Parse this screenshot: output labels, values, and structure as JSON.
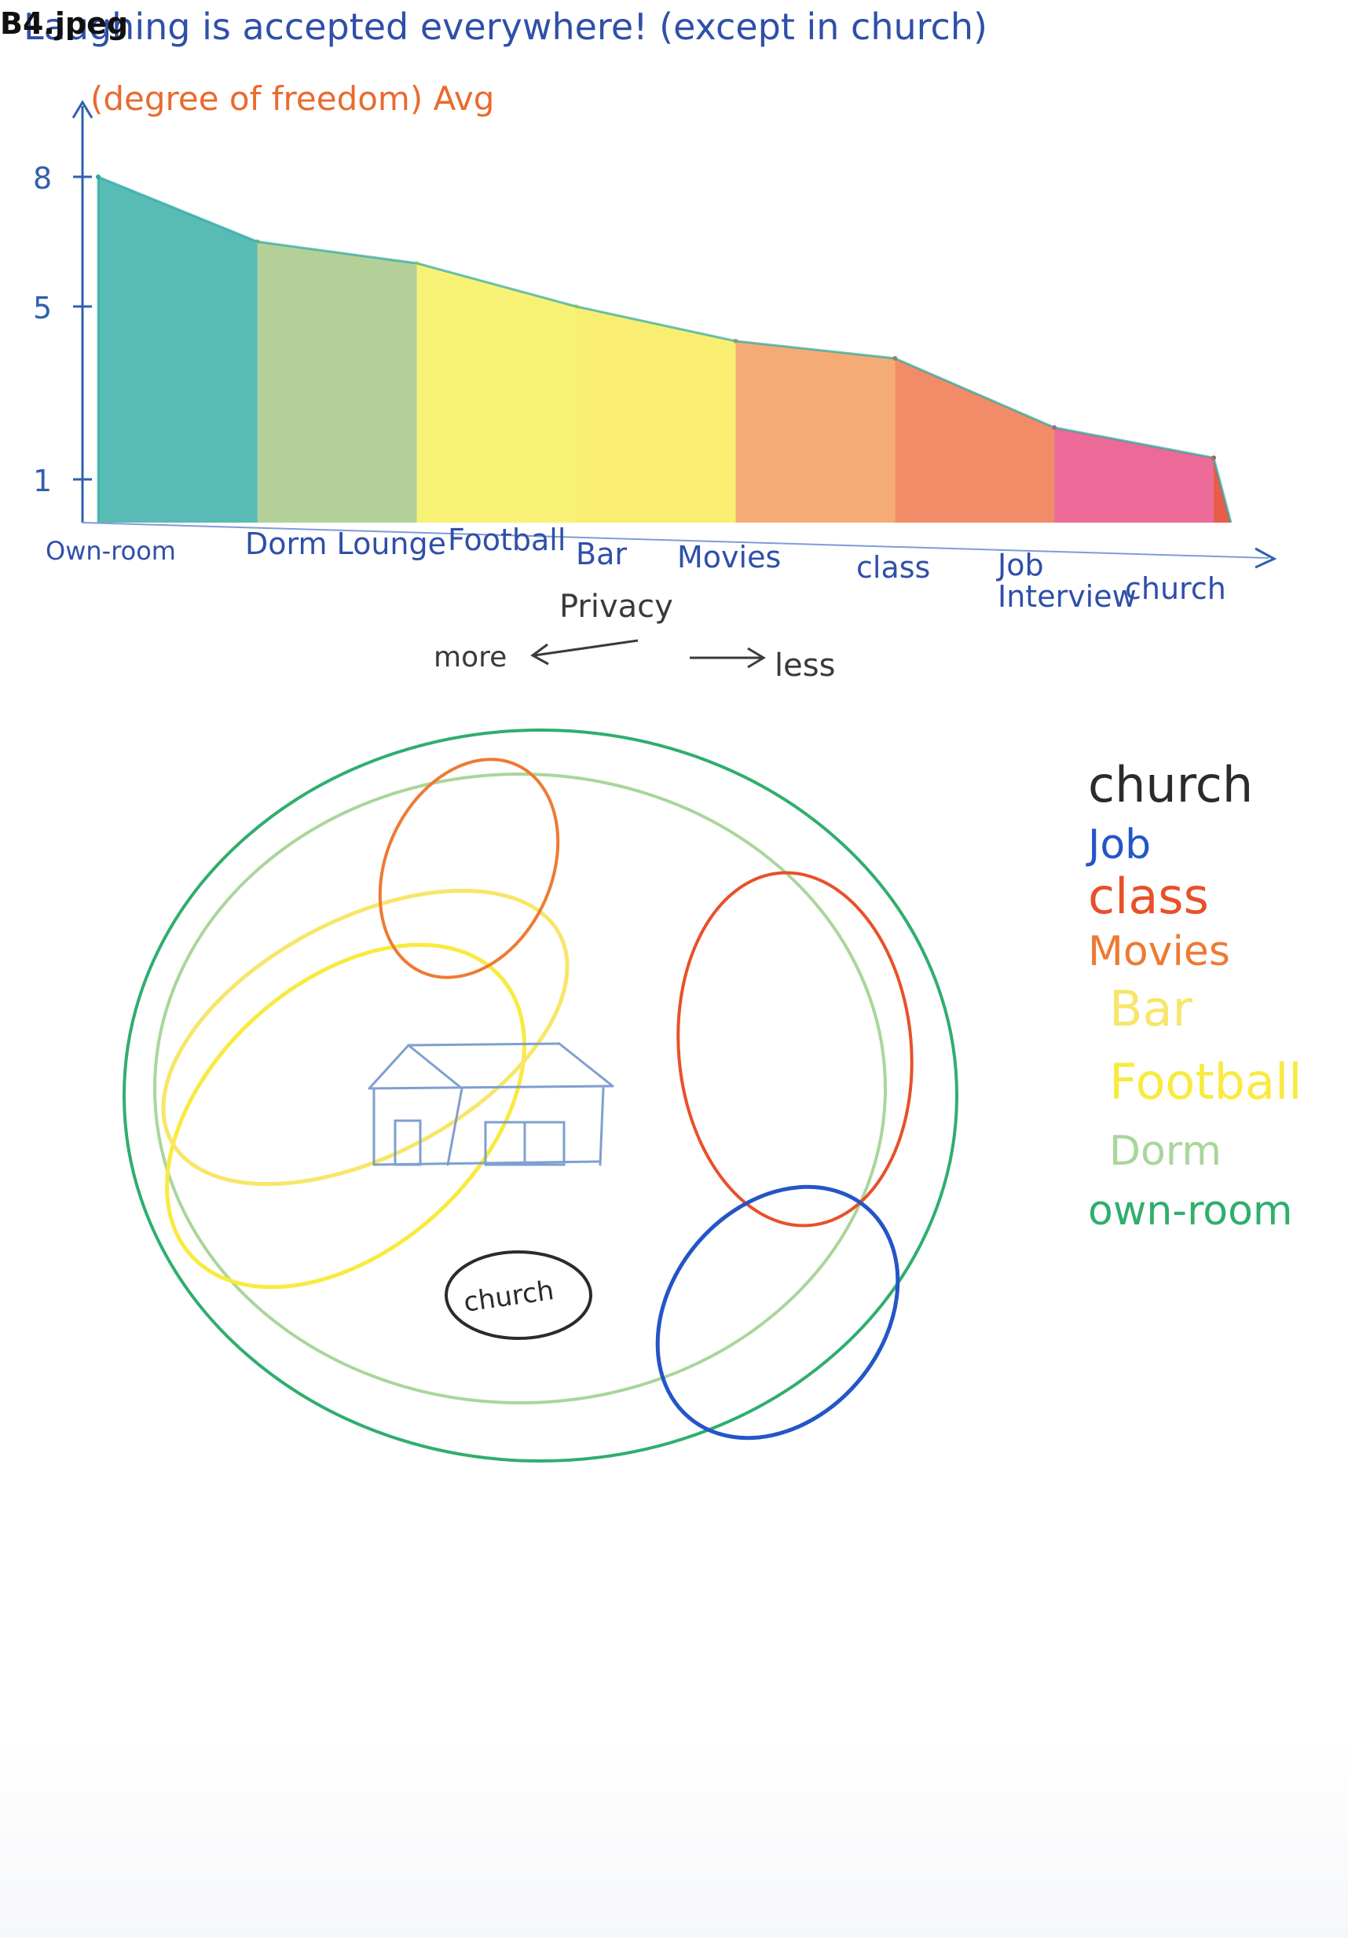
{
  "file_label": "B4.jpeg",
  "chart_data": {
    "type": "area",
    "title": "Laughing is accepted everywhere! (except in church)",
    "ylabel": "(degree of freedom) Avg",
    "xlabel": "Privacy",
    "privacy_direction": {
      "left": "more",
      "right": "less"
    },
    "yticks": [
      "8",
      "5",
      "1"
    ],
    "ylim": [
      0,
      9
    ],
    "grid": false,
    "categories": [
      "Own room",
      "Dorm Lounge",
      "Football",
      "Bar",
      "Movies",
      "class",
      "Job Interview",
      "church"
    ],
    "category_labels": [
      "Own-room",
      "Dorm Lounge",
      "Football",
      "Bar",
      "Movies",
      "class",
      "Job\nInterview",
      "church"
    ],
    "values": [
      8,
      6.5,
      6,
      5,
      4.2,
      3.8,
      2.2,
      1.5
    ],
    "colors": [
      "#2aa8a0",
      "#9cc37a",
      "#f5ee4f",
      "#f7e94a",
      "#f29450",
      "#ee6a3c",
      "#e5407a",
      "#e4402a"
    ]
  },
  "venn": {
    "legend": [
      {
        "label": "church",
        "color": "#2b2b2b"
      },
      {
        "label": "Job",
        "color": "#2455c8"
      },
      {
        "label": "class",
        "color": "#e8502a"
      },
      {
        "label": "Movies",
        "color": "#ee7a32"
      },
      {
        "label": "Bar",
        "color": "#f7e66a"
      },
      {
        "label": "Football",
        "color": "#f9ea40"
      },
      {
        "label": "Dorm",
        "color": "#a9d69a"
      },
      {
        "label": "own-room",
        "color": "#2fae6e"
      }
    ],
    "church_circle_label": "church"
  }
}
